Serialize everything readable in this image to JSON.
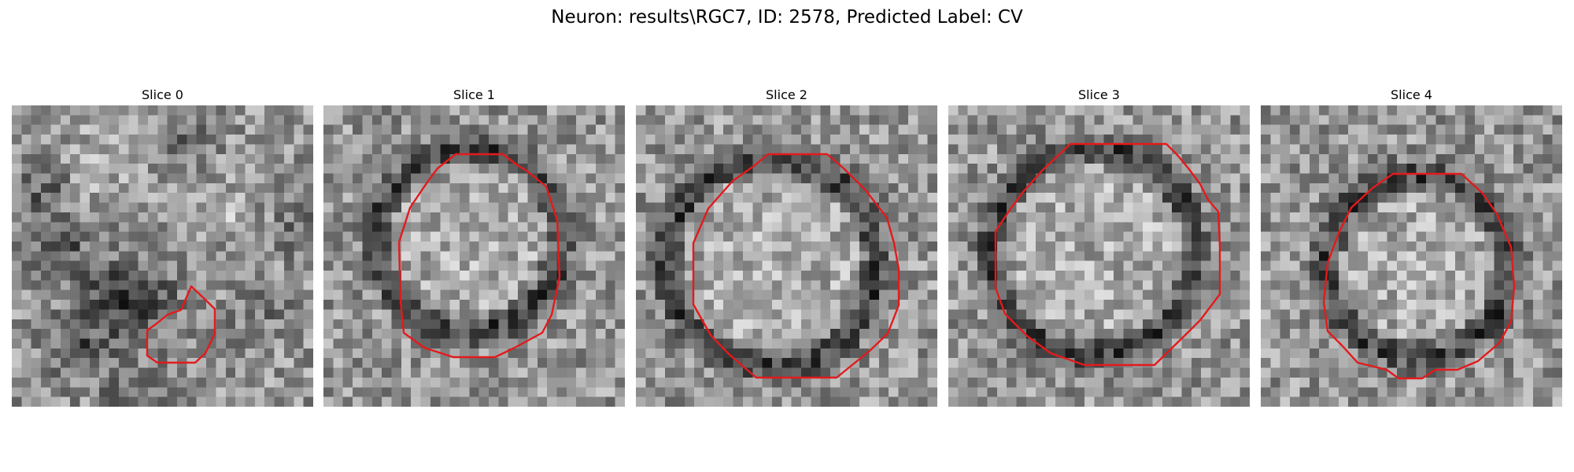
{
  "figure": {
    "title": "Neuron: results\\RGC7, ID: 2578, Predicted Label: CV"
  },
  "colors": {
    "background": "#ffffff",
    "contour": "#e31a1c",
    "colormap": "grayscale"
  },
  "panels": [
    {
      "title": "Slice 0"
    },
    {
      "title": "Slice 1"
    },
    {
      "title": "Slice 2"
    },
    {
      "title": "Slice 3"
    },
    {
      "title": "Slice 4"
    }
  ]
}
